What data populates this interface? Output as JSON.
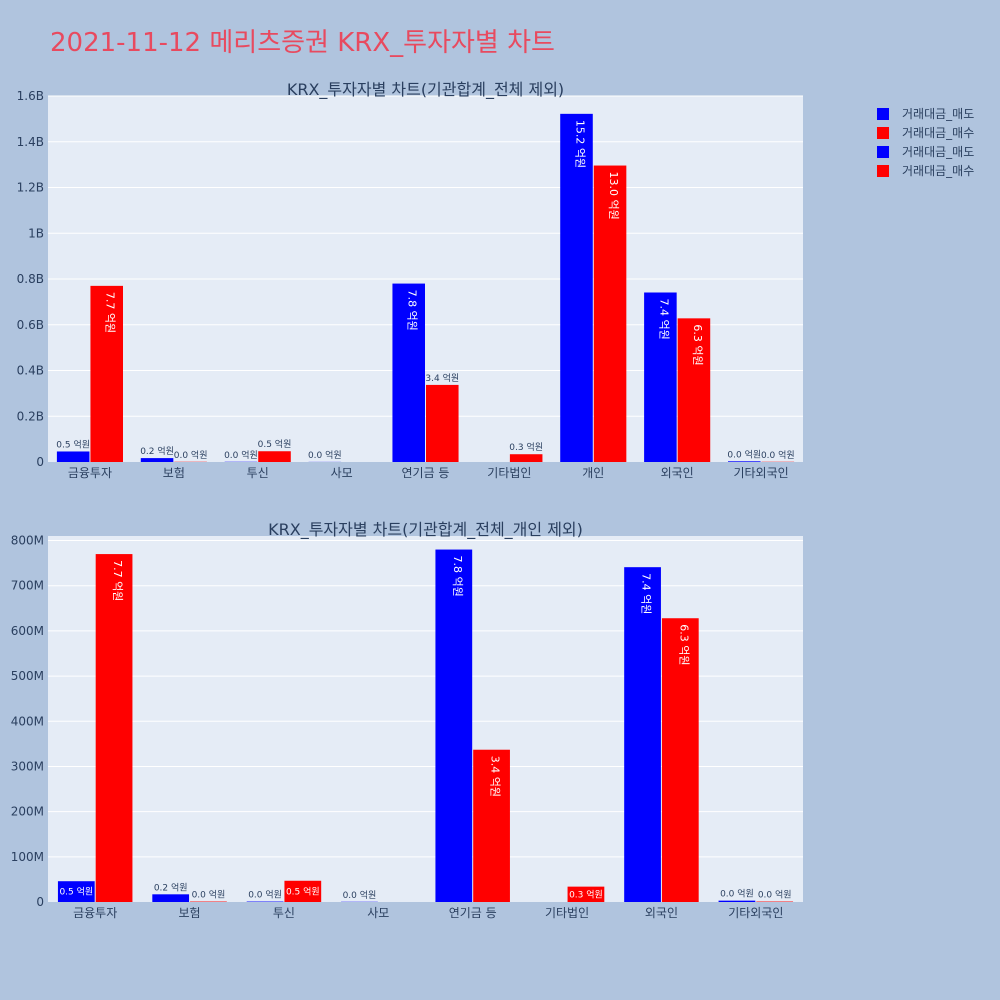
{
  "page_title": "2021-11-12 메리츠증권 KRX_투자자별 차트",
  "colors": {
    "sell": "#0000ff",
    "buy": "#ff0000",
    "plot_bg": "#e5ecf6",
    "page_bg": "#b0c4de",
    "title": "#e84a5f"
  },
  "legend": [
    "거래대금_매도",
    "거래대금_매수",
    "거래대금_매도",
    "거래대금_매수"
  ],
  "chart_data": [
    {
      "type": "bar",
      "title": "KRX_투자자별 차트(기관합계_전체 제외)",
      "categories": [
        "금융투자",
        "보험",
        "투신",
        "사모",
        "연기금 등",
        "기타법인",
        "개인",
        "외국인",
        "기타외국인"
      ],
      "ylim": [
        0,
        1600000000
      ],
      "yticks": [
        0,
        200000000,
        400000000,
        600000000,
        800000000,
        1000000000,
        1200000000,
        1400000000,
        1600000000
      ],
      "ytick_labels": [
        "0",
        "0.2B",
        "0.4B",
        "0.6B",
        "0.8B",
        "1B",
        "1.2B",
        "1.4B",
        "1.6B"
      ],
      "series": [
        {
          "name": "거래대금_매도",
          "values": [
            46000000,
            17000000,
            1000000,
            500000,
            780000000,
            0,
            1522000000,
            741000000,
            3000000
          ],
          "labels": [
            "0.5 억원",
            "0.2 억원",
            "0.0 억원",
            "0.0 억원",
            "7.8 억원",
            "",
            "15.2 억원",
            "7.4 억원",
            "0.0 억원"
          ]
        },
        {
          "name": "거래대금_매수",
          "values": [
            770000000,
            1000000,
            47000000,
            0,
            337000000,
            34000000,
            1296000000,
            628000000,
            1000000
          ],
          "labels": [
            "7.7 억원",
            "0.0 억원",
            "0.5 억원",
            "",
            "3.4 억원",
            "0.3 억원",
            "13.0 억원",
            "6.3 억원",
            "0.0 억원"
          ]
        }
      ]
    },
    {
      "type": "bar",
      "title": "KRX_투자자별 차트(기관합계_전체_개인 제외)",
      "categories": [
        "금융투자",
        "보험",
        "투신",
        "사모",
        "연기금 등",
        "기타법인",
        "외국인",
        "기타외국인"
      ],
      "ylim": [
        0,
        810000000
      ],
      "yticks": [
        0,
        100000000,
        200000000,
        300000000,
        400000000,
        500000000,
        600000000,
        700000000,
        800000000
      ],
      "ytick_labels": [
        "0",
        "100M",
        "200M",
        "300M",
        "400M",
        "500M",
        "600M",
        "700M",
        "800M"
      ],
      "series": [
        {
          "name": "거래대금_매도",
          "values": [
            46000000,
            17000000,
            1000000,
            500000,
            780000000,
            0,
            741000000,
            3000000
          ],
          "labels": [
            "0.5 억원",
            "0.2 억원",
            "0.0 억원",
            "0.0 억원",
            "7.8 억원",
            "",
            "7.4 억원",
            "0.0 억원"
          ]
        },
        {
          "name": "거래대금_매수",
          "values": [
            770000000,
            1000000,
            47000000,
            0,
            337000000,
            34000000,
            628000000,
            1000000
          ],
          "labels": [
            "7.7 억원",
            "0.0 억원",
            "0.5 억원",
            "",
            "3.4 억원",
            "0.3 억원",
            "6.3 억원",
            "0.0 억원"
          ]
        }
      ]
    }
  ]
}
